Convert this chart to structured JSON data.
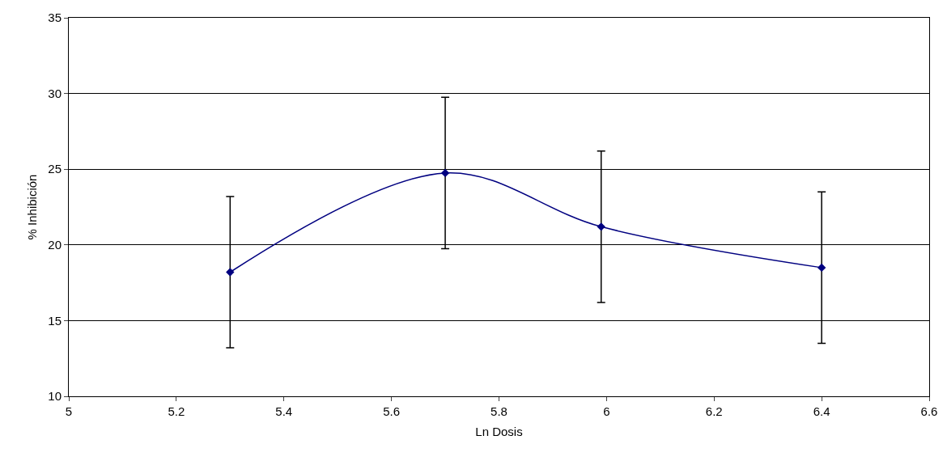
{
  "chart_data": {
    "type": "line",
    "xlabel": "Ln Dosis",
    "ylabel": "% Inhibición",
    "x": [
      5.3,
      5.7,
      5.99,
      6.4
    ],
    "series": [
      {
        "color": "#000080",
        "values": [
          18.2,
          24.75,
          21.2,
          18.5
        ],
        "errors": [
          5,
          5,
          5,
          5
        ]
      }
    ],
    "xlim": [
      5,
      6.6
    ],
    "xticks": [
      5,
      5.2,
      5.4,
      5.6,
      5.8,
      6,
      6.2,
      6.4,
      6.6
    ],
    "ylim": [
      10,
      35
    ],
    "yticks": [
      10,
      15,
      20,
      25,
      30,
      35
    ],
    "grid": "y",
    "marker": "diamond",
    "line_style": "solid"
  }
}
